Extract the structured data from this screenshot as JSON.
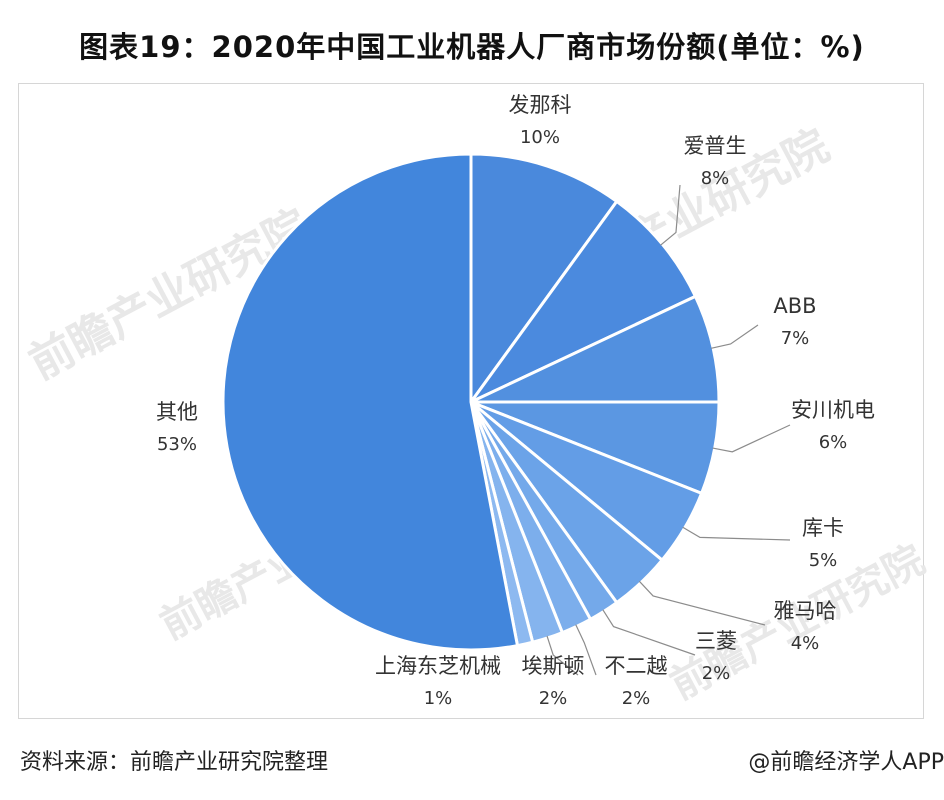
{
  "title": "图表19：2020年中国工业机器人厂商市场份额(单位：%)",
  "footer": {
    "source": "资料来源：前瞻产业研究院整理",
    "credit": "@前瞻经济学人APP"
  },
  "watermark": "前瞻产业研究院",
  "chart_data": {
    "type": "pie",
    "title": "图表19：2020年中国工业机器人厂商市场份额(单位：%)",
    "unit": "%",
    "slices": [
      {
        "name": "发那科",
        "value": 10,
        "label": "10%",
        "color": "#4a89dc"
      },
      {
        "name": "爱普生",
        "value": 8,
        "label": "8%",
        "color": "#4b8ade"
      },
      {
        "name": "ABB",
        "value": 7,
        "label": "7%",
        "color": "#5290df"
      },
      {
        "name": "安川机电",
        "value": 6,
        "label": "6%",
        "color": "#5b97e2"
      },
      {
        "name": "库卡",
        "value": 5,
        "label": "5%",
        "color": "#639de6"
      },
      {
        "name": "雅马哈",
        "value": 4,
        "label": "4%",
        "color": "#6ba3e8"
      },
      {
        "name": "三菱",
        "value": 2,
        "label": "2%",
        "color": "#74a9ea"
      },
      {
        "name": "不二越",
        "value": 2,
        "label": "2%",
        "color": "#7caeec"
      },
      {
        "name": "埃斯顿",
        "value": 2,
        "label": "2%",
        "color": "#85b4ee"
      },
      {
        "name": "上海东芝机械",
        "value": 1,
        "label": "1%",
        "color": "#8db9f0"
      },
      {
        "name": "其他",
        "value": 53,
        "label": "53%",
        "color": "#4286dc"
      }
    ]
  }
}
